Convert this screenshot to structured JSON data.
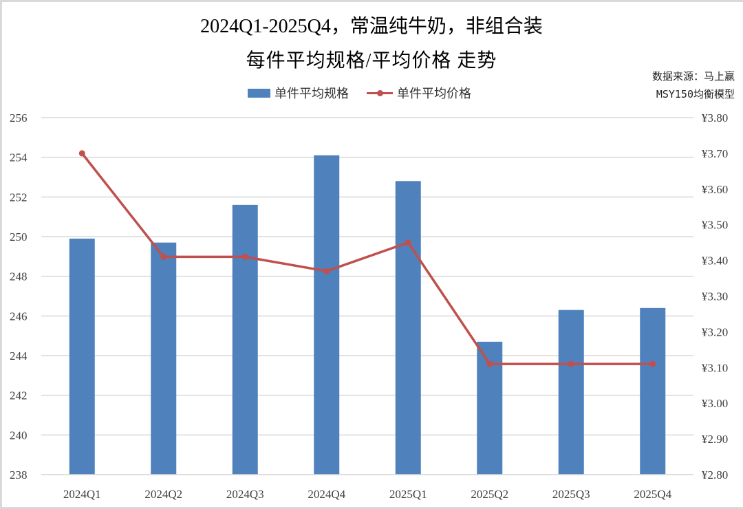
{
  "title": {
    "line1": "2024Q1-2025Q4，常温纯牛奶，非组合装",
    "line2": "每件平均规格/平均价格 走势"
  },
  "source": {
    "line1": "数据来源：马上赢",
    "line2": "MSY150均衡模型"
  },
  "legend": {
    "bar_label": "单件平均规格",
    "line_label": "单件平均价格"
  },
  "colors": {
    "bar": "#4f81bd",
    "line": "#c0504d",
    "grid": "#d9d9d9",
    "axis_text": "#404040"
  },
  "chart_data": {
    "type": "bar+line",
    "title": "2024Q1-2025Q4，常温纯牛奶，非组合装 每件平均规格/平均价格 走势",
    "categories": [
      "2024Q1",
      "2024Q2",
      "2024Q3",
      "2024Q4",
      "2025Q1",
      "2025Q2",
      "2025Q3",
      "2025Q4"
    ],
    "series": [
      {
        "name": "单件平均规格",
        "type": "bar",
        "axis": "left",
        "values": [
          249.9,
          249.7,
          251.6,
          254.1,
          252.8,
          244.7,
          246.3,
          246.4
        ]
      },
      {
        "name": "单件平均价格",
        "type": "line",
        "axis": "right",
        "values": [
          3.7,
          3.41,
          3.41,
          3.37,
          3.45,
          3.11,
          3.11,
          3.11
        ]
      }
    ],
    "left_axis": {
      "ylim": [
        238,
        256
      ],
      "ticks": [
        "256",
        "254",
        "252",
        "250",
        "248",
        "246",
        "244",
        "242",
        "240",
        "238"
      ]
    },
    "right_axis": {
      "ylim": [
        2.8,
        3.8
      ],
      "ticks": [
        "¥3.80",
        "¥3.70",
        "¥3.60",
        "¥3.50",
        "¥3.40",
        "¥3.30",
        "¥3.20",
        "¥3.10",
        "¥3.00",
        "¥2.90",
        "¥2.80"
      ]
    },
    "xlabel": "",
    "ylabel": "",
    "grid": true,
    "legend_position": "top"
  }
}
